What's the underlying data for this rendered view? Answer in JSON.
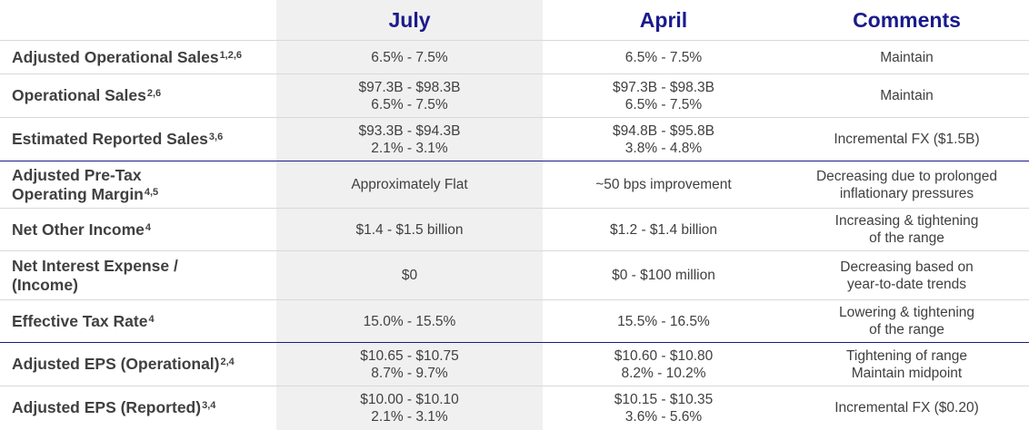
{
  "header": {
    "july": "July",
    "april": "April",
    "comments": "Comments"
  },
  "rows": [
    {
      "label": "Adjusted Operational Sales",
      "sup": "1,2,6",
      "july": [
        "6.5% - 7.5%"
      ],
      "april": [
        "6.5% - 7.5%"
      ],
      "comments": [
        "Maintain"
      ]
    },
    {
      "label": "Operational Sales",
      "sup": "2,6",
      "july": [
        "$97.3B - $98.3B",
        "6.5% - 7.5%"
      ],
      "april": [
        "$97.3B - $98.3B",
        "6.5% - 7.5%"
      ],
      "comments": [
        "Maintain"
      ]
    },
    {
      "label": "Estimated Reported Sales",
      "sup": "3,6",
      "july": [
        "$93.3B - $94.3B",
        "2.1% - 3.1%"
      ],
      "april": [
        "$94.8B - $95.8B",
        "3.8% - 4.8%"
      ],
      "comments": [
        "Incremental FX ($1.5B)"
      ]
    },
    {
      "label": "Adjusted Pre-Tax",
      "label2": "Operating Margin",
      "sup": "4,5",
      "july": [
        "Approximately Flat"
      ],
      "april": [
        "~50 bps improvement"
      ],
      "comments": [
        "Decreasing due to prolonged",
        "inflationary pressures"
      ]
    },
    {
      "label": "Net Other Income",
      "sup": "4",
      "july": [
        "$1.4 - $1.5 billion"
      ],
      "april": [
        "$1.2 - $1.4 billion"
      ],
      "comments": [
        "Increasing & tightening",
        "of the range"
      ]
    },
    {
      "label": "Net Interest Expense /",
      "label2": "(Income)",
      "sup": "",
      "july": [
        "$0"
      ],
      "april": [
        "$0 - $100 million"
      ],
      "comments": [
        "Decreasing based on",
        "year-to-date trends"
      ]
    },
    {
      "label": "Effective Tax Rate",
      "sup": "4",
      "july": [
        "15.0% - 15.5%"
      ],
      "april": [
        "15.5% - 16.5%"
      ],
      "comments": [
        "Lowering & tightening",
        "of the range"
      ]
    },
    {
      "label": "Adjusted EPS (Operational)",
      "sup": "2,4",
      "july": [
        "$10.65 - $10.75",
        "8.7% - 9.7%"
      ],
      "april": [
        "$10.60 - $10.80",
        "8.2% - 10.2%"
      ],
      "comments": [
        "Tightening of range",
        "Maintain midpoint"
      ]
    },
    {
      "label": "Adjusted EPS (Reported)",
      "sup": "3,4",
      "july": [
        "$10.00 - $10.10",
        "2.1% - 3.1%"
      ],
      "april": [
        "$10.15 - $10.35",
        "3.6% - 5.6%"
      ],
      "comments": [
        "Incremental FX ($0.20)"
      ]
    }
  ],
  "colors": {
    "header_text": "#1a1a8c",
    "body_text": "#404040",
    "july_band": "#f0f0f0",
    "separator": "#1a1a8c"
  }
}
